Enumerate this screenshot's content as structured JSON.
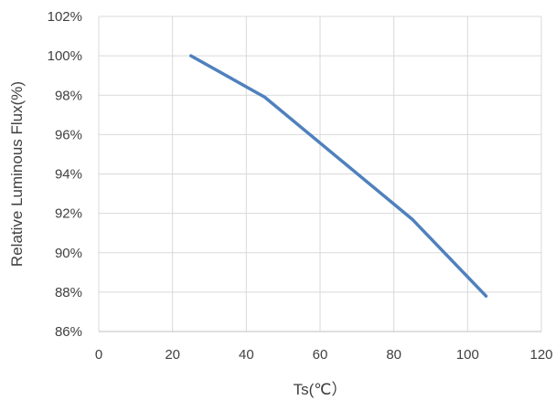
{
  "chart_data": {
    "type": "line",
    "title": "",
    "xlabel": "Ts(℃）",
    "ylabel": "Relative Luminous Flux(%)",
    "xlim": [
      0,
      120
    ],
    "ylim": [
      86,
      102
    ],
    "x_ticks": [
      0,
      20,
      40,
      60,
      80,
      100,
      120
    ],
    "y_ticks": [
      86,
      88,
      90,
      92,
      94,
      96,
      98,
      100,
      102
    ],
    "y_tick_labels": [
      "86%",
      "88%",
      "90%",
      "92%",
      "94%",
      "96%",
      "98%",
      "100%",
      "102%"
    ],
    "grid": true,
    "legend": "none",
    "series": [
      {
        "color": "#4f81bd",
        "x": [
          25,
          45,
          65,
          85,
          105
        ],
        "y": [
          100.0,
          97.9,
          94.8,
          91.7,
          87.8
        ]
      }
    ]
  }
}
